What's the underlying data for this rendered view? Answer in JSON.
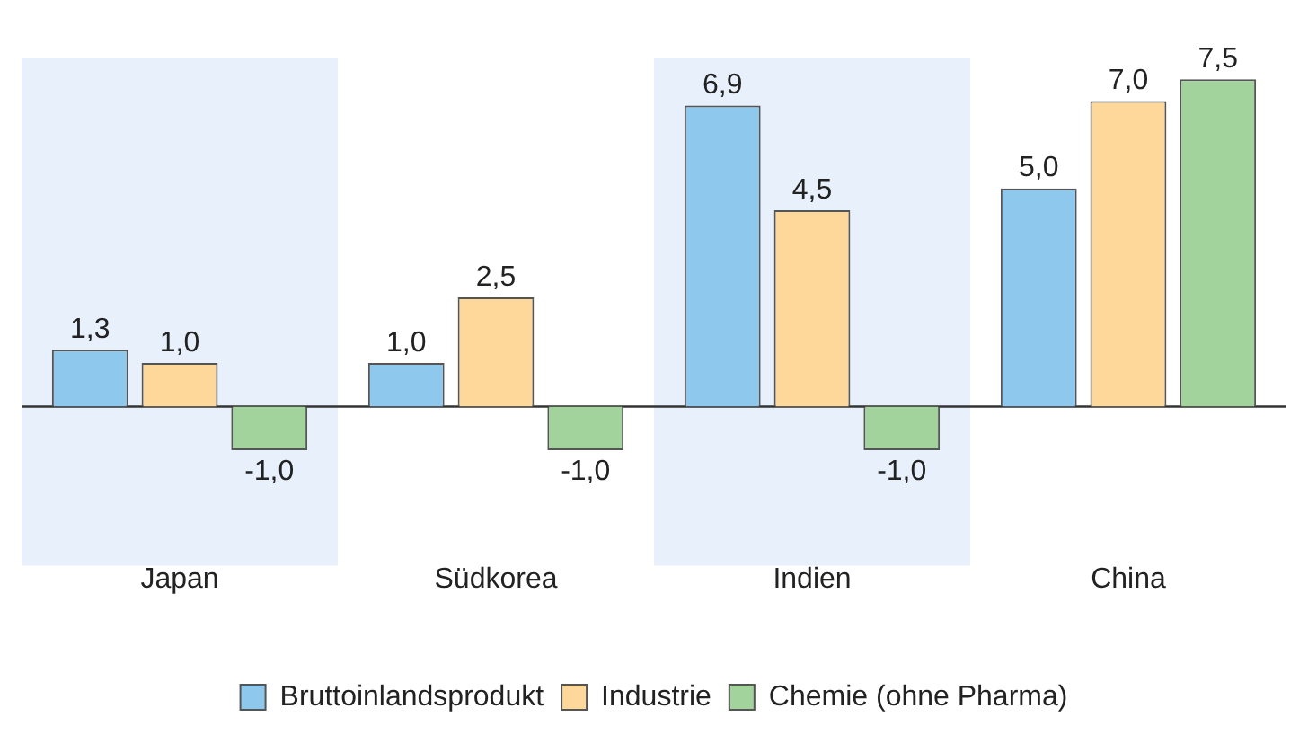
{
  "chart_data": {
    "type": "bar",
    "categories": [
      "Japan",
      "Südkorea",
      "Indien",
      "China"
    ],
    "series": [
      {
        "name": "Bruttoinlandsprodukt",
        "color": "#8ec8ec",
        "values": [
          1.3,
          1.0,
          6.9,
          5.0
        ],
        "value_labels": [
          "1,3",
          "1,0",
          "6,9",
          "5,0"
        ]
      },
      {
        "name": "Industrie",
        "color": "#fdd89a",
        "values": [
          1.0,
          2.5,
          4.5,
          7.0
        ],
        "value_labels": [
          "1,0",
          "2,5",
          "4,5",
          "7,0"
        ]
      },
      {
        "name": "Chemie (ohne Pharma)",
        "color": "#a3d39c",
        "values": [
          -1.0,
          -1.0,
          -1.0,
          7.5
        ],
        "value_labels": [
          "-1,0",
          "-1,0",
          "-1,0",
          "7,5"
        ]
      }
    ],
    "bands": [
      {
        "axis": "x",
        "from": "Japan",
        "to": "Japan",
        "color": "#e8f0fb"
      },
      {
        "axis": "x",
        "from": "Indien",
        "to": "Indien",
        "color": "#e8f0fb"
      }
    ],
    "legend": "bottom",
    "grid": false
  }
}
